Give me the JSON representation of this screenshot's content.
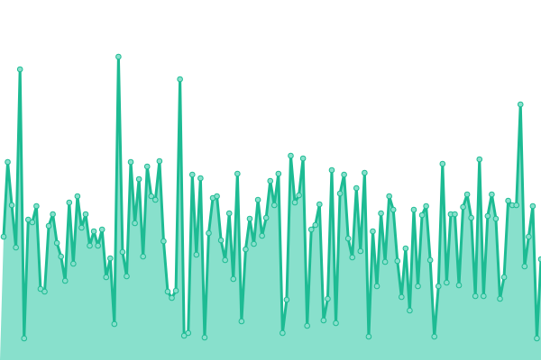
{
  "chart_data": {
    "type": "area",
    "color": "#1dbb93",
    "fill": "#88e0cc",
    "ylim": [
      0,
      400
    ],
    "values": [
      137,
      220,
      172,
      125,
      323,
      24,
      156,
      153,
      171,
      79,
      76,
      149,
      162,
      130,
      115,
      88,
      175,
      107,
      182,
      147,
      162,
      127,
      143,
      127,
      145,
      92,
      113,
      40,
      337,
      120,
      93,
      220,
      152,
      201,
      115,
      215,
      182,
      178,
      221,
      132,
      76,
      69,
      77,
      312,
      27,
      30,
      206,
      117,
      202,
      25,
      141,
      180,
      182,
      133,
      111,
      163,
      90,
      207,
      43,
      123,
      157,
      129,
      178,
      138,
      158,
      199,
      172,
      207,
      30,
      67,
      227,
      175,
      183,
      224,
      38,
      145,
      150,
      173,
      44,
      68,
      211,
      41,
      185,
      206,
      135,
      114,
      191,
      121,
      208,
      26,
      143,
      82,
      163,
      109,
      182,
      167,
      110,
      70,
      124,
      55,
      167,
      82,
      161,
      171,
      111,
      26,
      82,
      218,
      86,
      162,
      162,
      83,
      170,
      184,
      158,
      71,
      223,
      71,
      160,
      184,
      157,
      68,
      92,
      177,
      172,
      172,
      284,
      104,
      137,
      171,
      24,
      112
    ]
  }
}
